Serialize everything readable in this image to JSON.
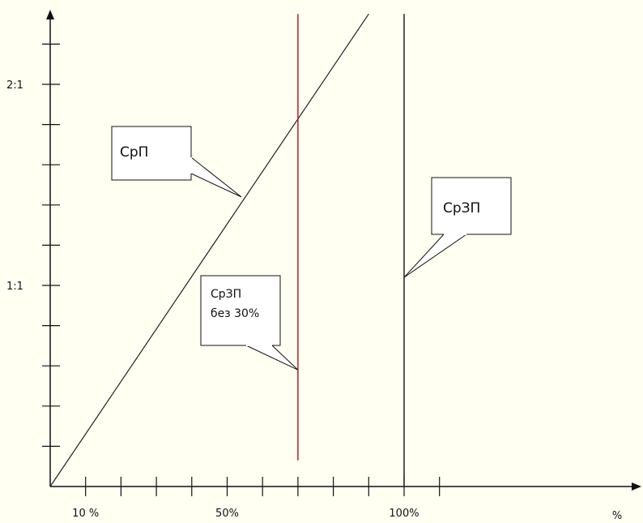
{
  "colors": {
    "background": "#fffff2",
    "axis": "#111111",
    "line": "#222222",
    "highlight": "#b22222"
  },
  "chart_data": {
    "type": "line",
    "title": "",
    "xlabel": "%",
    "ylabel": "",
    "xlim": [
      0,
      160
    ],
    "ylim": [
      0,
      2.5
    ],
    "x_ticks": [
      10,
      20,
      30,
      40,
      50,
      60,
      70,
      80,
      90,
      100,
      110
    ],
    "x_tick_labels": [
      {
        "x": 10,
        "text": "10 %"
      },
      {
        "x": 50,
        "text": "50%"
      },
      {
        "x": 100,
        "text": "100%"
      }
    ],
    "y_ticks": [
      0.2,
      0.4,
      0.6,
      0.8,
      1.0,
      1.2,
      1.4,
      1.6,
      1.8,
      2.0,
      2.2
    ],
    "y_tick_labels": [
      {
        "y": 1.0,
        "text": "1:1"
      },
      {
        "y": 2.0,
        "text": "2:1"
      }
    ],
    "series": [
      {
        "name": "СрП",
        "kind": "line",
        "color": "#222222",
        "points": [
          [
            0,
            0
          ],
          [
            90,
            2.35
          ]
        ]
      },
      {
        "name": "СрЗП без 30%",
        "kind": "vline",
        "color": "#b22222",
        "x": 70,
        "y_range": [
          0.13,
          2.35
        ]
      },
      {
        "name": "СрЗП",
        "kind": "vline",
        "color": "#222222",
        "x": 100,
        "y_range": [
          0,
          2.35
        ]
      }
    ],
    "annotations": [
      {
        "lines": [
          "СрП"
        ],
        "point": [
          54,
          1.44
        ]
      },
      {
        "lines": [
          "СрЗП",
          "без 30%"
        ],
        "point": [
          70,
          0.58
        ]
      },
      {
        "lines": [
          "СрЗП"
        ],
        "point": [
          100,
          1.04
        ]
      }
    ],
    "grid": false,
    "legend": "none"
  }
}
